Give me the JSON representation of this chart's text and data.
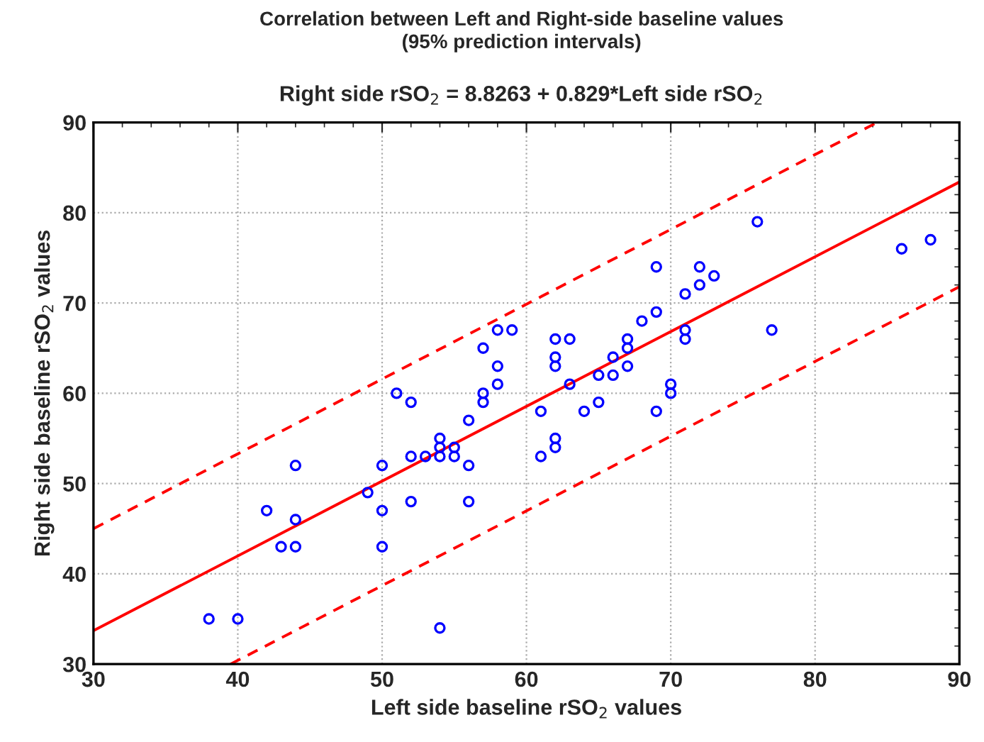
{
  "chart_data": {
    "type": "scatter",
    "title": "Correlation between Left and Right-side baseline values\n(95% prediction intervals)",
    "subtitle": "Right side rSO$_{2}$ = 8.8263 + 0.829*Left side rSO$_{2}$",
    "xlabel": "Left side baseline rSO$_{2}$ values",
    "ylabel": "Right side baseline rSO$_{2}$ values",
    "xlim": [
      30,
      90
    ],
    "ylim": [
      30,
      90
    ],
    "xticks": [
      30,
      40,
      50,
      60,
      70,
      80,
      90
    ],
    "yticks": [
      30,
      40,
      50,
      60,
      70,
      80,
      90
    ],
    "grid": true,
    "series": [
      {
        "marker": "circle",
        "color": "#0000ff",
        "x": [
          38,
          40,
          42,
          43,
          44,
          44,
          44,
          49,
          50,
          50,
          50,
          51,
          52,
          52,
          52,
          53,
          54,
          54,
          54,
          55,
          55,
          56,
          56,
          56,
          57,
          57,
          57,
          58,
          58,
          58,
          59,
          54,
          61,
          61,
          62,
          62,
          62,
          62,
          62,
          63,
          63,
          64,
          65,
          65,
          66,
          66,
          67,
          67,
          67,
          68,
          69,
          69,
          69,
          70,
          70,
          71,
          71,
          71,
          72,
          72,
          73,
          76,
          77,
          86,
          88
        ],
        "values": [
          35,
          35,
          47,
          43,
          43,
          46,
          52,
          49,
          52,
          47,
          43,
          60,
          59,
          53,
          48,
          53,
          53,
          55,
          54,
          54,
          53,
          52,
          48,
          57,
          65,
          60,
          59,
          67,
          63,
          61,
          67,
          34,
          58,
          53,
          66,
          64,
          63,
          55,
          54,
          61,
          66,
          58,
          62,
          59,
          64,
          62,
          65,
          66,
          63,
          68,
          74,
          69,
          58,
          61,
          60,
          71,
          67,
          66,
          74,
          72,
          73,
          79,
          67,
          76,
          77
        ]
      },
      {
        "type": "line",
        "line_style": "solid",
        "color": "#ff0000",
        "x": [
          30,
          90
        ],
        "values": [
          33.7,
          83.4
        ]
      },
      {
        "type": "line",
        "line_style": "dashed",
        "color": "#ff0000",
        "x": [
          30,
          84.3
        ],
        "values": [
          45,
          90
        ]
      },
      {
        "type": "line",
        "line_style": "dashed",
        "color": "#ff0000",
        "x": [
          39.5,
          90
        ],
        "values": [
          30,
          71.8
        ]
      }
    ]
  }
}
